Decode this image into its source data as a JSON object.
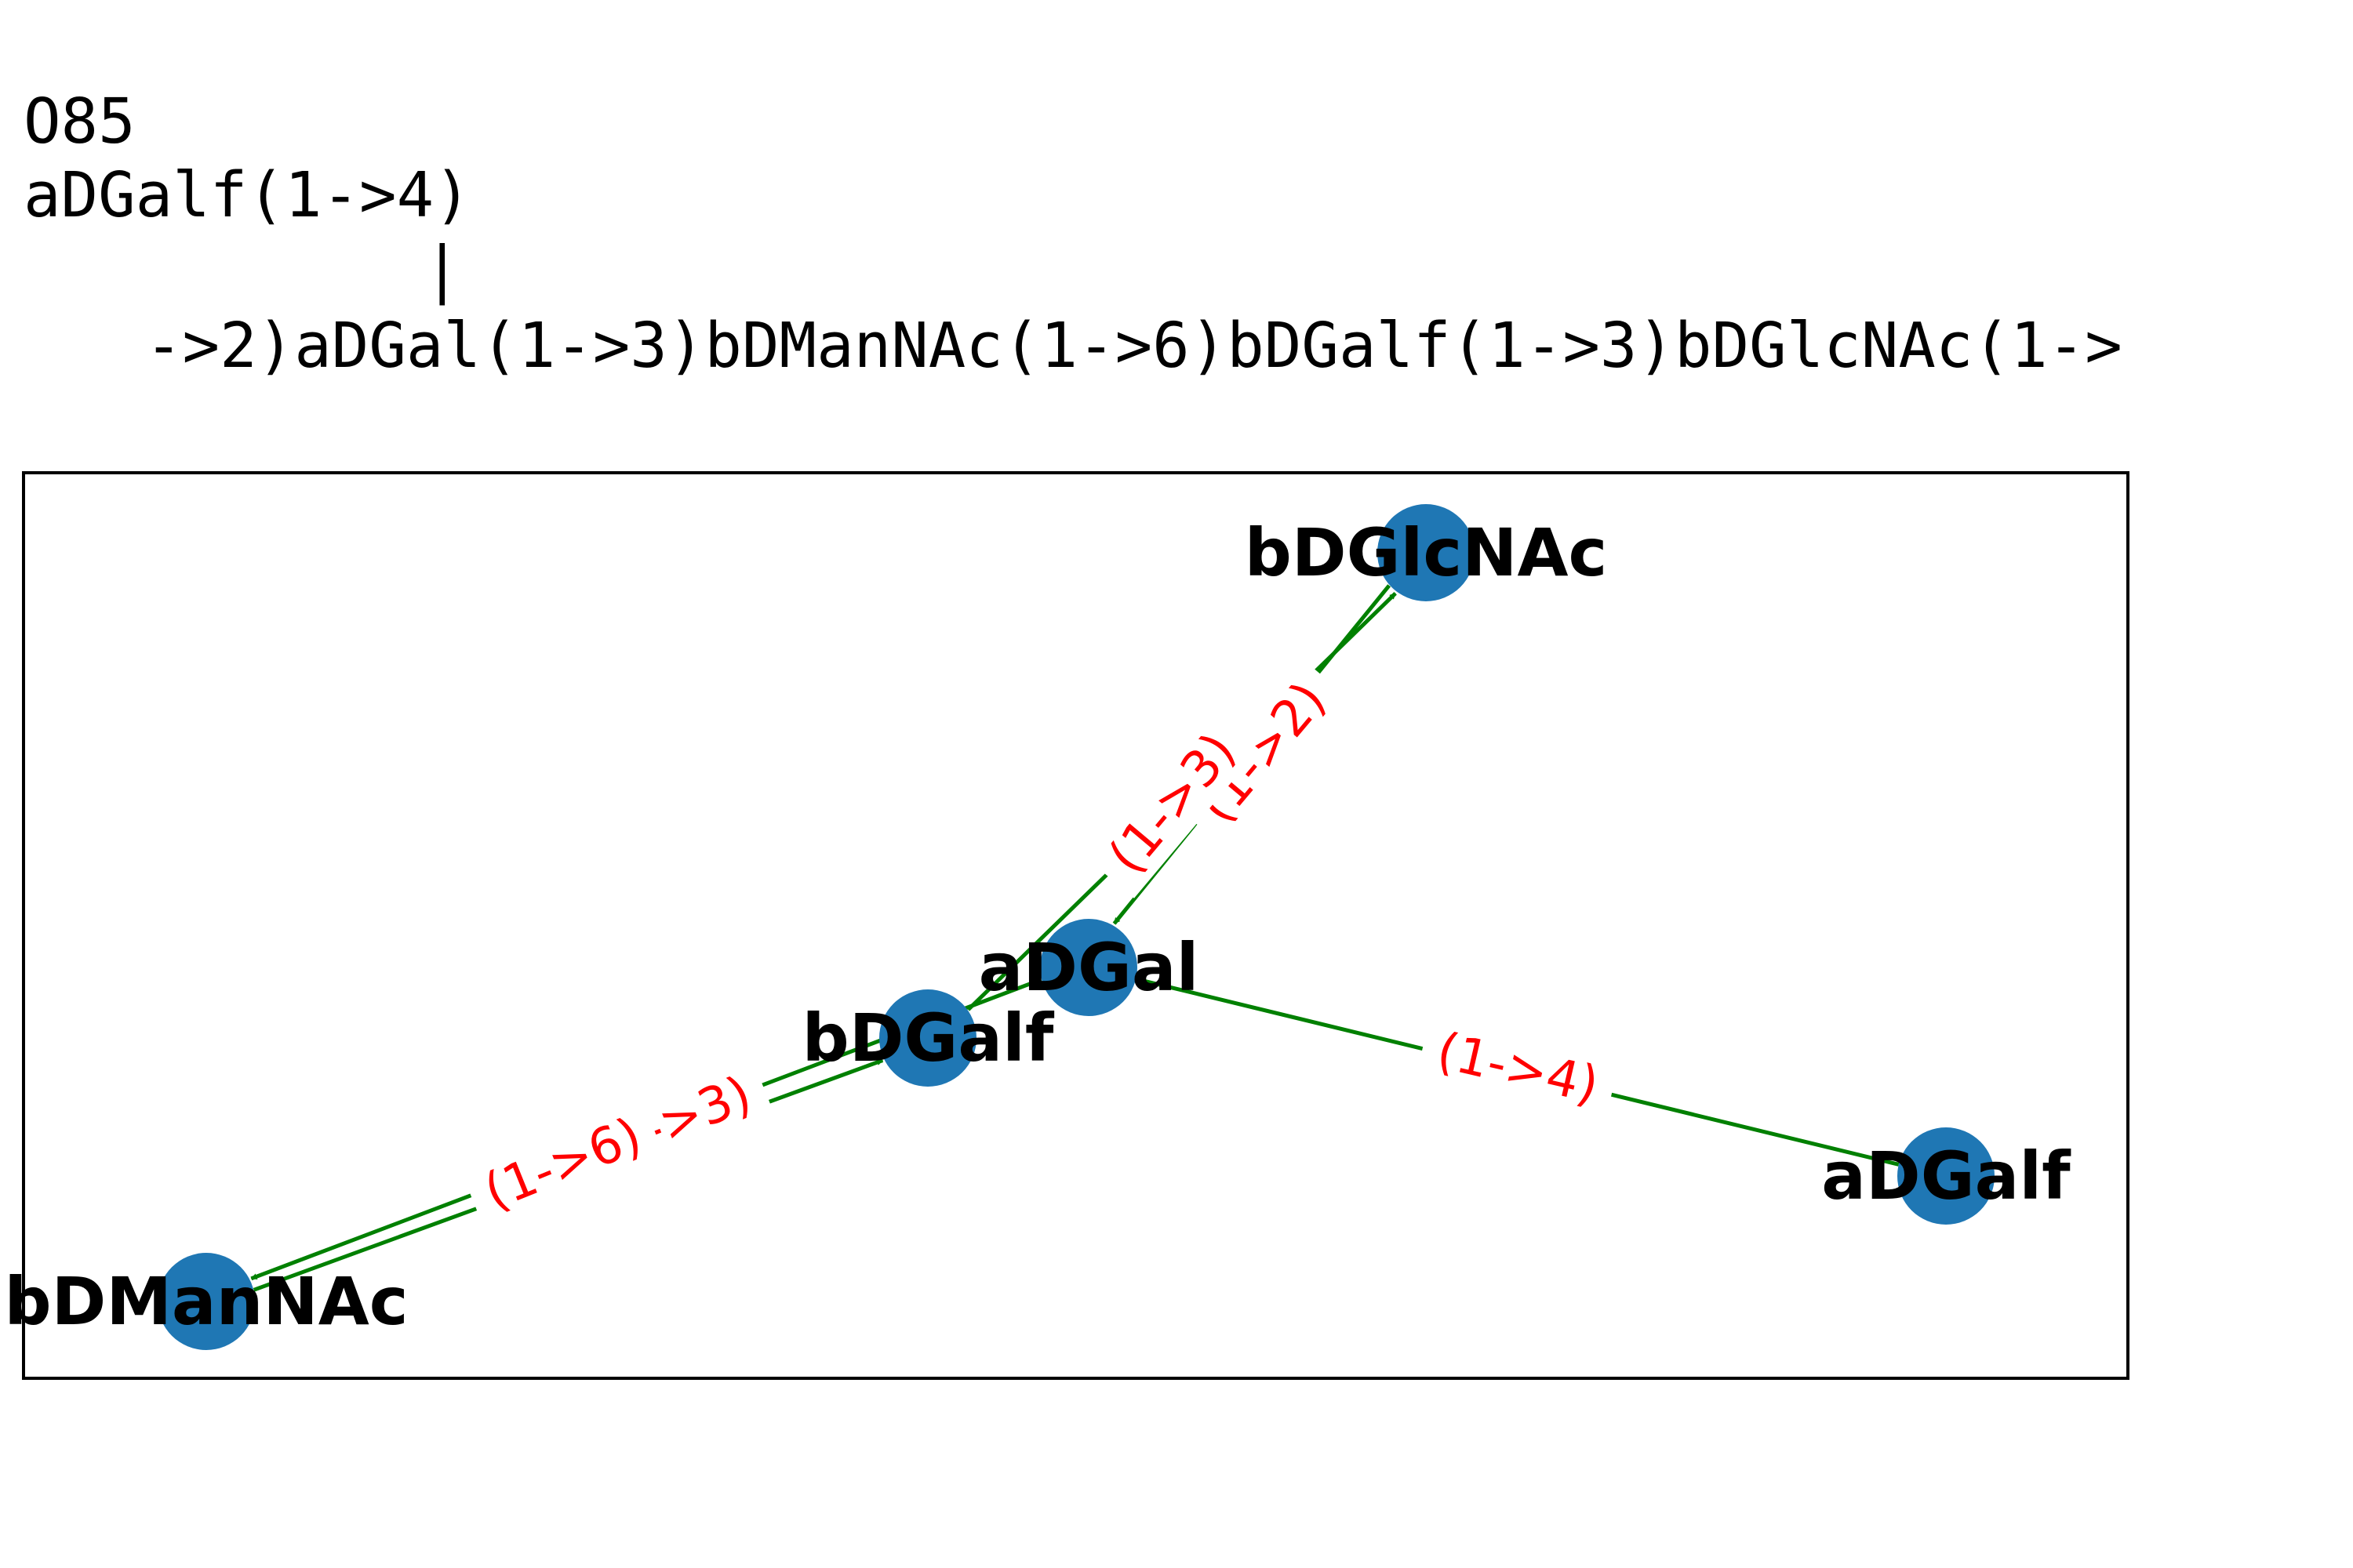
{
  "structure": {
    "id": "O85",
    "line1": "aDGalf(1->4)",
    "connector": "|",
    "line2": "->2)aDGal(1->3)bDManNAc(1->6)bDGalf(1->3)bDGlcNAc(1->"
  },
  "graph": {
    "nodes": [
      {
        "id": "bDGlcNAc",
        "label": "bDGlcNAc"
      },
      {
        "id": "aDGal",
        "label": "aDGal"
      },
      {
        "id": "bDGalf",
        "label": "bDGalf"
      },
      {
        "id": "bDManNAc",
        "label": "bDManNAc"
      },
      {
        "id": "aDGalf",
        "label": "aDGalf"
      }
    ],
    "edges": [
      {
        "from": "bDGlcNAc",
        "to": "aDGal",
        "label": "(1->2)"
      },
      {
        "from": "bDGalf",
        "to": "bDGlcNAc",
        "label": "(1->3)"
      },
      {
        "from": "aDGal",
        "to": "bDManNAc",
        "label": "(1->3)"
      },
      {
        "from": "bDManNAc",
        "to": "bDGalf",
        "label": "(1->6)"
      },
      {
        "from": "aDGalf",
        "to": "aDGal",
        "label": "(1->4)"
      }
    ],
    "colors": {
      "node": "#1f77b4",
      "edge": "#008000",
      "edge_label": "#ff0000",
      "frame": "#000000"
    }
  }
}
